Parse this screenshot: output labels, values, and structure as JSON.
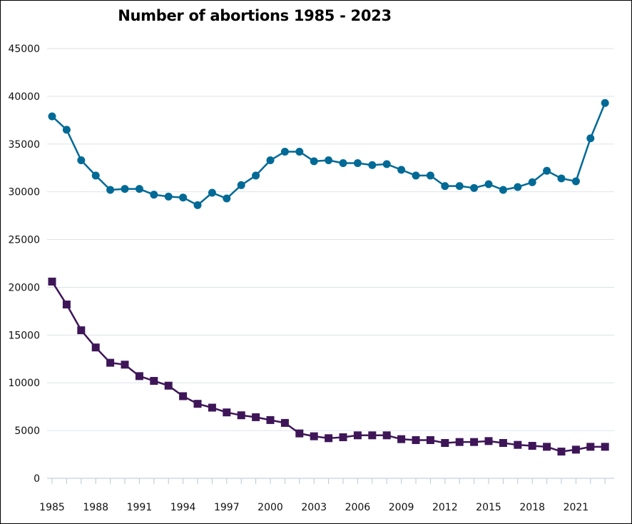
{
  "chart_data": {
    "type": "line",
    "title": "Number of abortions 1985 - 2023",
    "xlabel": "",
    "ylabel": "",
    "x": [
      1985,
      1986,
      1987,
      1988,
      1989,
      1990,
      1991,
      1992,
      1993,
      1994,
      1995,
      1996,
      1997,
      1998,
      1999,
      2000,
      2001,
      2002,
      2003,
      2004,
      2005,
      2006,
      2007,
      2008,
      2009,
      2010,
      2011,
      2012,
      2013,
      2014,
      2015,
      2016,
      2017,
      2018,
      2019,
      2020,
      2021,
      2022,
      2023
    ],
    "xticks": [
      "1985",
      "1988",
      "1991",
      "1994",
      "1997",
      "2000",
      "2003",
      "2006",
      "2009",
      "2012",
      "2015",
      "2018",
      "2021"
    ],
    "ylim": [
      0,
      45000
    ],
    "yticks": [
      "0",
      "5000",
      "10000",
      "15000",
      "20000",
      "25000",
      "30000",
      "35000",
      "40000",
      "45000"
    ],
    "grid": true,
    "legend": "none",
    "series": [
      {
        "color": "#006a96",
        "marker": "circle",
        "values": [
          37900,
          36500,
          33300,
          31700,
          30200,
          30300,
          30300,
          29700,
          29500,
          29400,
          28600,
          29900,
          29300,
          30700,
          31700,
          33300,
          34200,
          34200,
          33200,
          33300,
          33000,
          33000,
          32800,
          32900,
          32300,
          31700,
          31700,
          30600,
          30600,
          30400,
          30800,
          30200,
          30500,
          31000,
          32200,
          31400,
          31100,
          35600,
          39300
        ]
      },
      {
        "color": "#3e1658",
        "marker": "square",
        "values": [
          20600,
          18200,
          15500,
          13700,
          12100,
          11900,
          10700,
          10200,
          9700,
          8600,
          7800,
          7400,
          6900,
          6600,
          6400,
          6100,
          5800,
          4700,
          4400,
          4200,
          4300,
          4500,
          4500,
          4500,
          4100,
          4000,
          4000,
          3700,
          3800,
          3800,
          3900,
          3700,
          3500,
          3400,
          3300,
          2800,
          3000,
          3300,
          3300
        ]
      }
    ]
  }
}
